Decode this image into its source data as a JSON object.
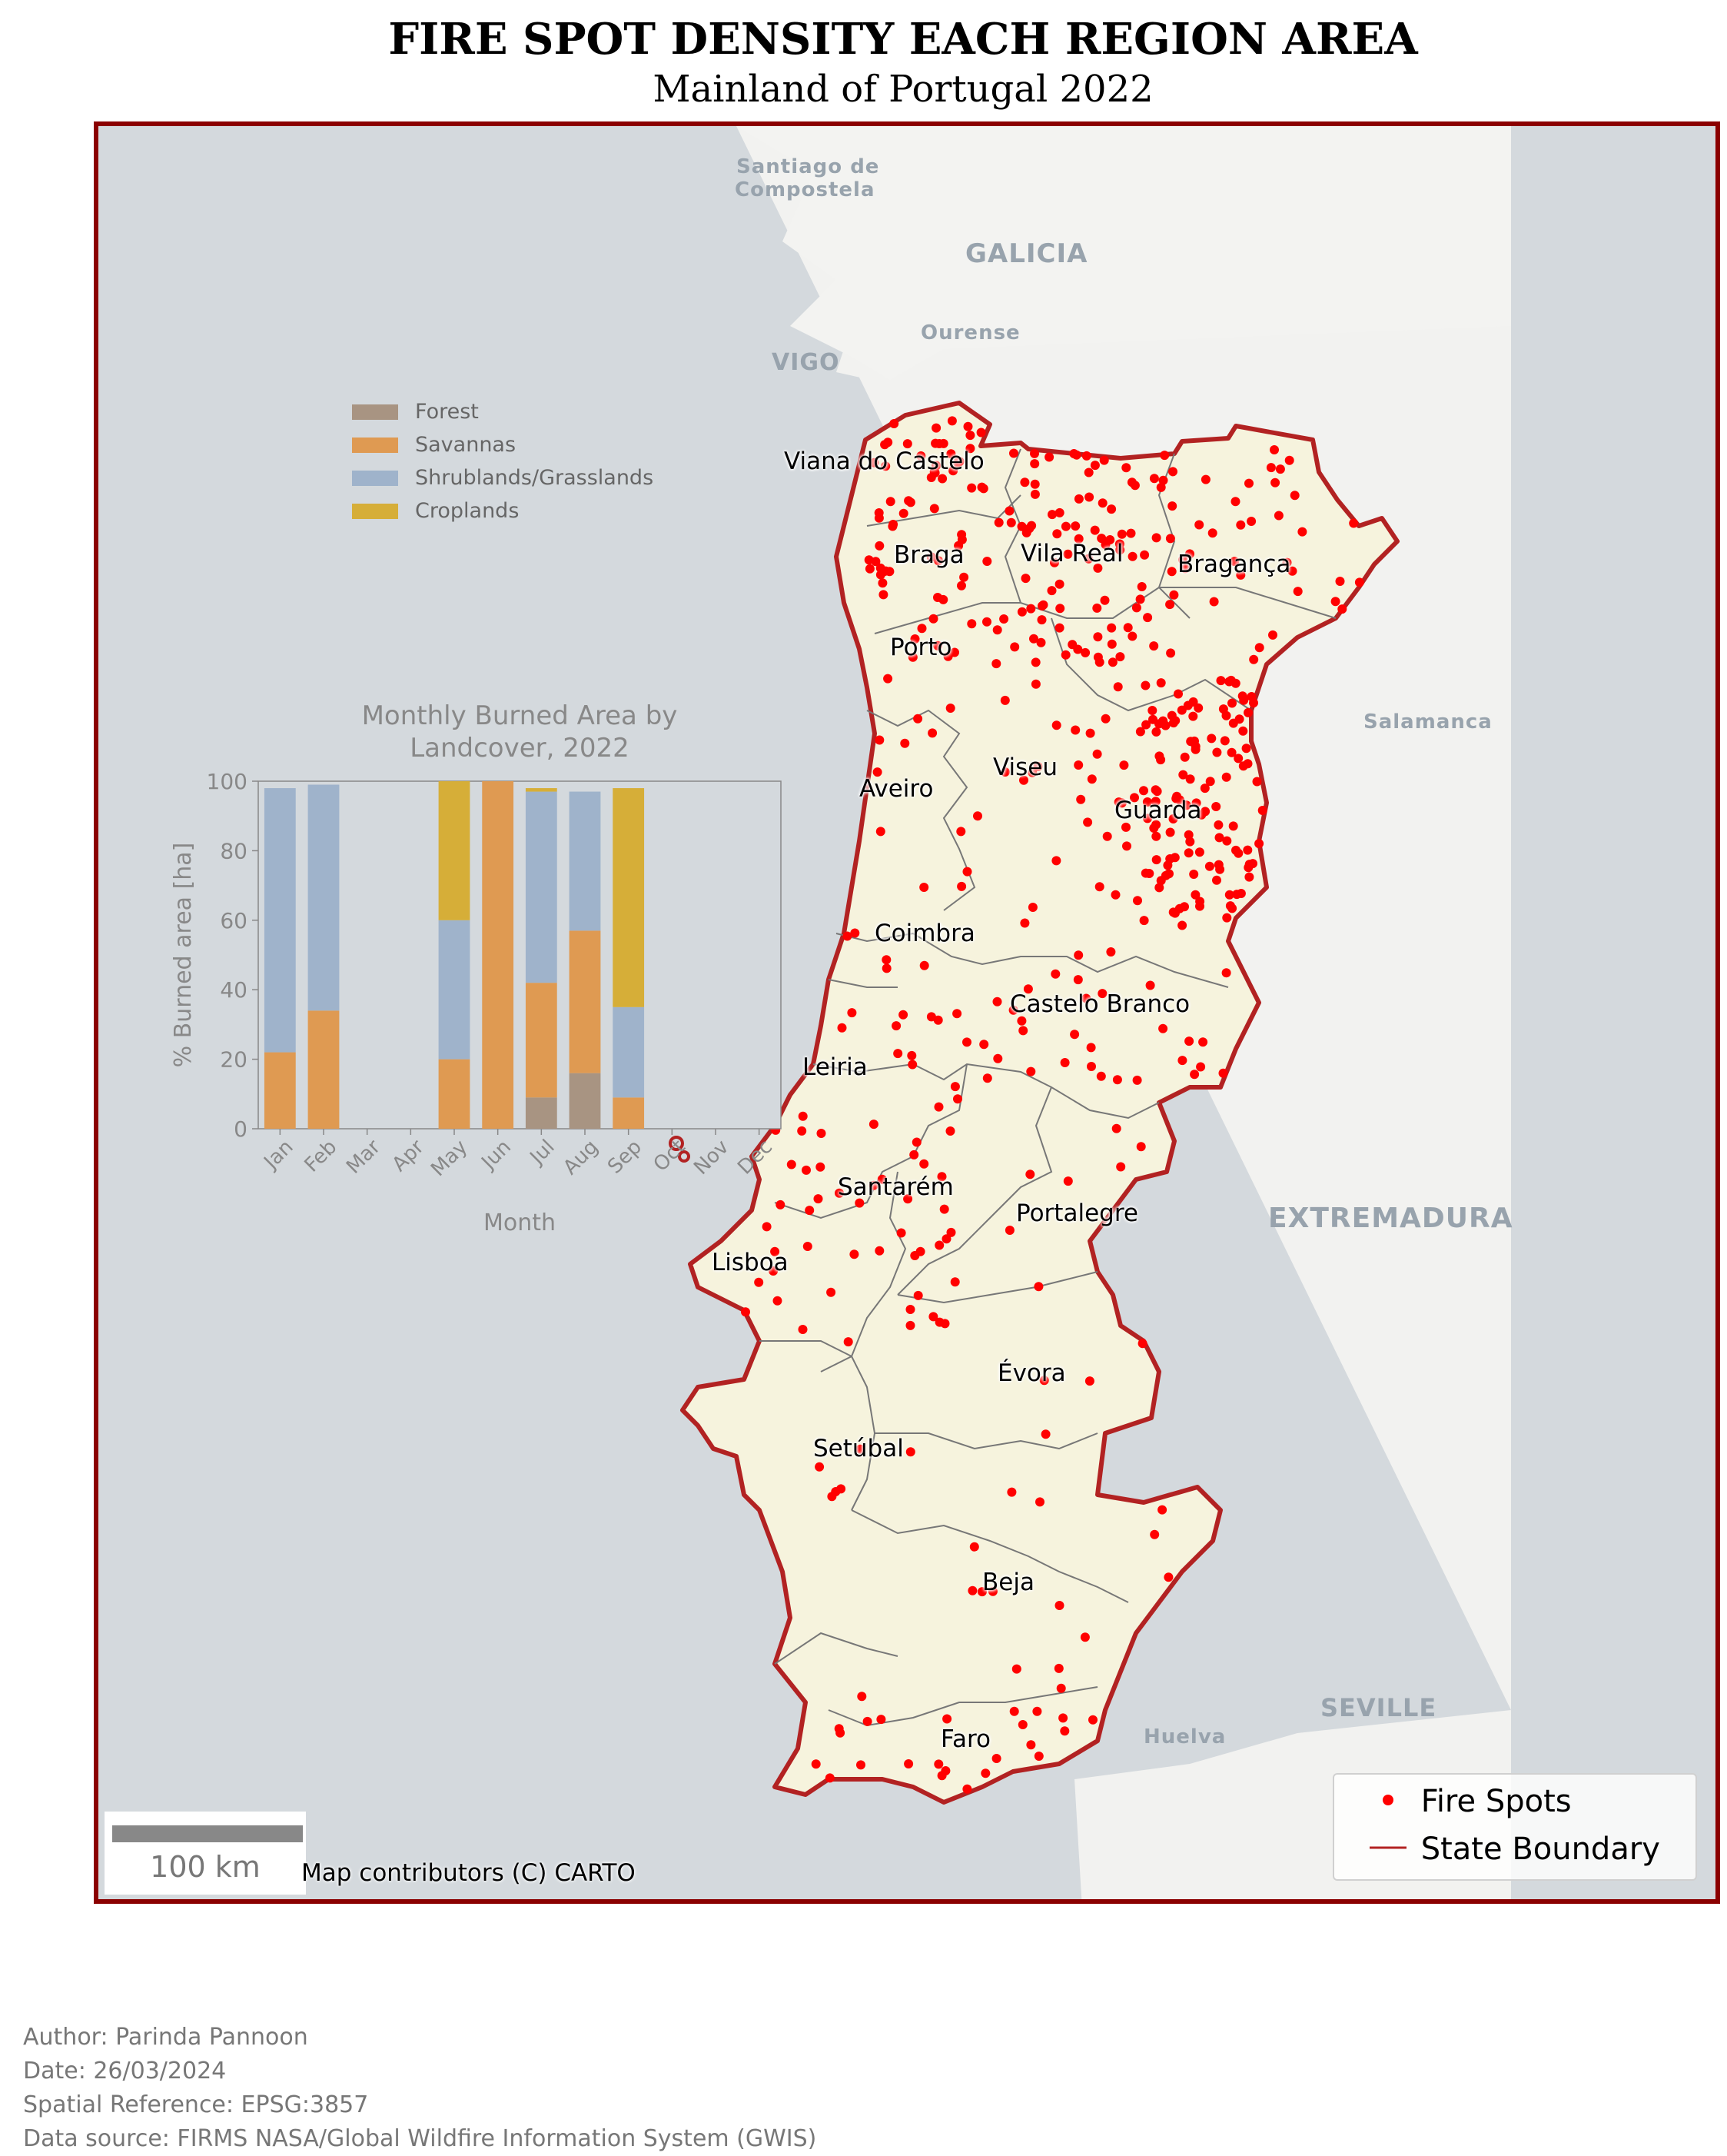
{
  "header": {
    "title": "FIRE SPOT DENSITY EACH REGION AREA",
    "subtitle": "Mainland of Portugal 2022"
  },
  "basemap_labels": [
    {
      "text": "Santiago de",
      "id": "santiago-1"
    },
    {
      "text": "Compostela",
      "id": "santiago-2"
    },
    {
      "text": "GALICIA",
      "id": "galicia"
    },
    {
      "text": "Ourense",
      "id": "ourense"
    },
    {
      "text": "VIGO",
      "id": "vigo"
    },
    {
      "text": "Salamanca",
      "id": "salamanca"
    },
    {
      "text": "EXTREMADURA",
      "id": "extremadura"
    },
    {
      "text": "SEVILLE",
      "id": "seville"
    },
    {
      "text": "Huelva",
      "id": "huelva"
    }
  ],
  "regions": [
    "Viana do Castelo",
    "Braga",
    "Vila Real",
    "Bragança",
    "Porto",
    "Viseu",
    "Aveiro",
    "Guarda",
    "Coimbra",
    "Castelo Branco",
    "Leiria",
    "Santarém",
    "Portalegre",
    "Lisboa",
    "Évora",
    "Setúbal",
    "Beja",
    "Faro"
  ],
  "legend": {
    "fire_spots": "Fire Spots",
    "state_boundary": "State Boundary",
    "fire_color": "#ff0000",
    "boundary_color": "#b22222"
  },
  "scalebar": {
    "label": "100 km"
  },
  "attribution": "Map contributors (C) CARTO",
  "chart_data": {
    "type": "bar",
    "stacked": true,
    "title": "Monthly Burned Area by Landcover, 2022",
    "xlabel": "Month",
    "ylabel": "% Burned area [ha]",
    "ylim": [
      0,
      100
    ],
    "yticks": [
      0,
      20,
      40,
      60,
      80,
      100
    ],
    "legend_position": "top-left",
    "categories": [
      "Jan",
      "Feb",
      "Mar",
      "Apr",
      "May",
      "Jun",
      "Jul",
      "Aug",
      "Sep",
      "Oct",
      "Nov",
      "Dec"
    ],
    "series": [
      {
        "name": "Forest",
        "color": "#a89482",
        "values": [
          0,
          0,
          0,
          0,
          0,
          0,
          9,
          16,
          0,
          0,
          0,
          0
        ]
      },
      {
        "name": "Savannas",
        "color": "#df9a52",
        "values": [
          22,
          34,
          0,
          0,
          20,
          100,
          33,
          41,
          9,
          0,
          0,
          0
        ]
      },
      {
        "name": "Shrublands/Grasslands",
        "color": "#9fb3cb",
        "values": [
          76,
          65,
          0,
          0,
          40,
          0,
          55,
          40,
          26,
          0,
          0,
          0
        ]
      },
      {
        "name": "Croplands",
        "color": "#d6ae38",
        "values": [
          0,
          0,
          0,
          0,
          40,
          0,
          1,
          0,
          63,
          0,
          0,
          0
        ]
      }
    ]
  },
  "footer": {
    "author": "Author: Parinda Pannoon",
    "date": "Date: 26/03/2024",
    "reference": "Spatial Reference: EPSG:3857",
    "source": "Data source: FIRMS NASA/Global Wildfire Information System (GWIS)"
  }
}
